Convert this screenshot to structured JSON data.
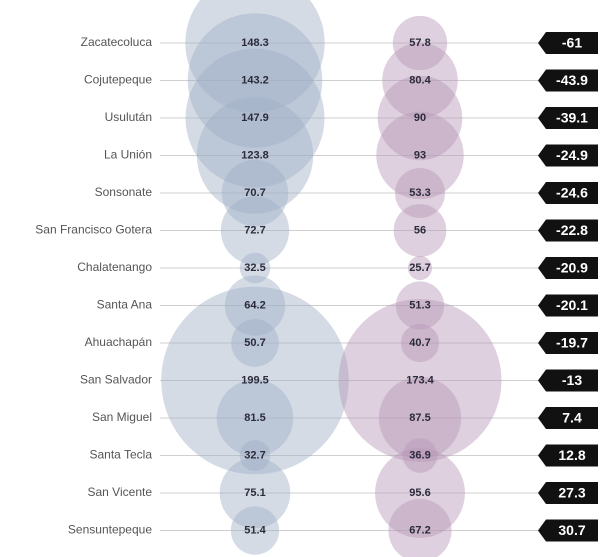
{
  "chart_data": {
    "type": "bubble",
    "categories": [
      "Zacatecoluca",
      "Cojutepeque",
      "Usulután",
      "La Unión",
      "Sonsonate",
      "San Francisco Gotera",
      "Chalatenango",
      "Santa Ana",
      "Ahuachapán",
      "San Salvador",
      "San Miguel",
      "Santa Tecla",
      "San Vicente",
      "Sensuntepeque"
    ],
    "series": [
      {
        "color": "#9fb0c6",
        "values": [
          148.3,
          143.2,
          147.9,
          123.8,
          70.7,
          72.7,
          32.5,
          64.2,
          50.7,
          199.5,
          81.5,
          32.7,
          75.1,
          51.4
        ]
      },
      {
        "color": "#b597b6",
        "values": [
          57.8,
          80.4,
          90,
          93,
          53.3,
          56,
          25.7,
          51.3,
          40.7,
          173.4,
          87.5,
          36.9,
          95.6,
          67.2
        ]
      }
    ],
    "differences": [
      -61,
      -43.9,
      -39.1,
      -24.9,
      -24.6,
      -22.8,
      -20.9,
      -20.1,
      -19.7,
      -13,
      7.4,
      12.8,
      27.3,
      30.7
    ],
    "difference_color": "#111111"
  }
}
